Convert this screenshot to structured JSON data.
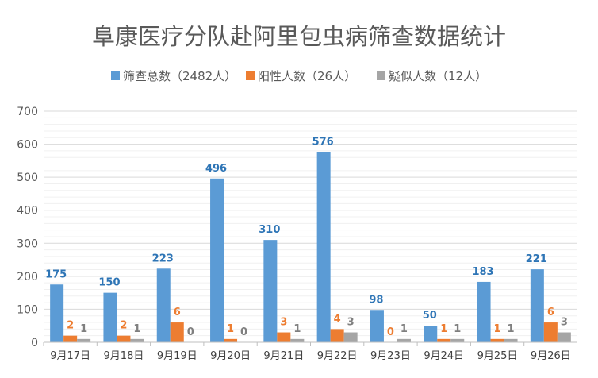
{
  "chart_data": {
    "type": "bar",
    "title": "阜康医疗分队赴阿里包虫病筛查数据统计",
    "categories": [
      "9月17日",
      "9月18日",
      "9月19日",
      "9月20日",
      "9月21日",
      "9月22日",
      "9月23日",
      "9月24日",
      "9月25日",
      "9月26日"
    ],
    "series": [
      {
        "name": "筛查总数（2482人）",
        "color": "#5B9BD5",
        "values": [
          175,
          150,
          223,
          496,
          310,
          576,
          98,
          50,
          183,
          221
        ]
      },
      {
        "name": "阳性人数（26人）",
        "color": "#ED7D31",
        "values": [
          2,
          2,
          6,
          1,
          3,
          4,
          0,
          1,
          1,
          6
        ]
      },
      {
        "name": "疑似人数（12人）",
        "color": "#A5A5A5",
        "values": [
          1,
          1,
          0,
          0,
          1,
          3,
          1,
          1,
          1,
          3
        ]
      }
    ],
    "ylim": [
      0,
      700
    ],
    "yticks": [
      "0",
      "100",
      "200",
      "300",
      "400",
      "500",
      "600",
      "700"
    ],
    "grid": true,
    "legend": "top",
    "label_colors": [
      "#2E75B6",
      "#ED7D31",
      "#7F7F7F"
    ]
  }
}
